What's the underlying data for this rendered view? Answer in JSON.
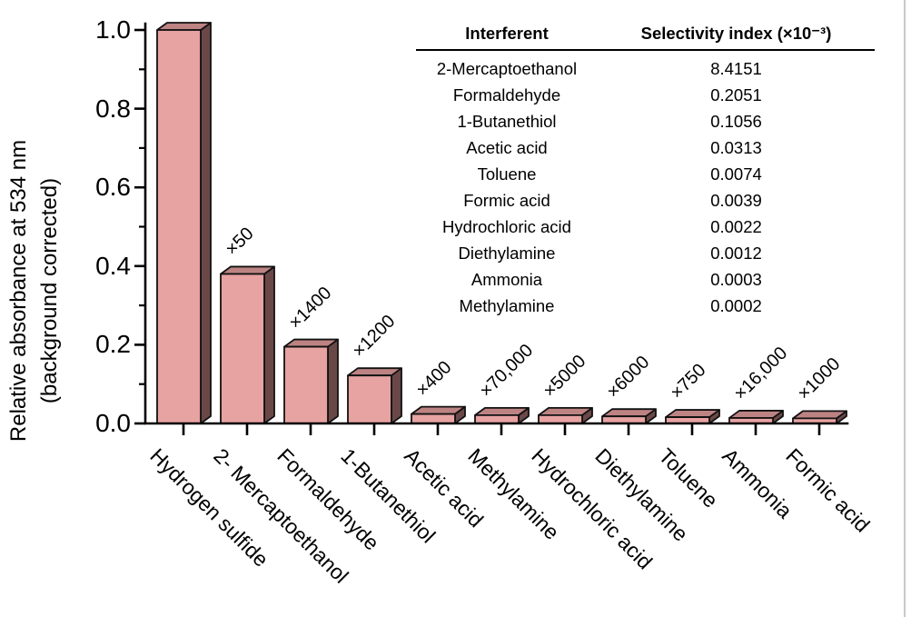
{
  "chart_data": {
    "type": "bar",
    "title": "",
    "ylabel_line1": "Relative absorbance at 534 nm",
    "ylabel_line2": "(background corrected)",
    "xlabel": "",
    "ylim": [
      0.0,
      1.0
    ],
    "ytick_labels": [
      "0.0",
      "0.2",
      "0.4",
      "0.6",
      "0.8",
      "1.0"
    ],
    "ytick_values": [
      0.0,
      0.2,
      0.4,
      0.6,
      0.8,
      1.0
    ],
    "yminor_values": [
      0.1,
      0.3,
      0.5,
      0.7,
      0.9
    ],
    "grid": "off",
    "categories": [
      "Hydrogen sulfide",
      "2- Mercaptoethanol",
      "Formaldehyde",
      "1-Butanethiol",
      "Acetic acid",
      "Methylamine",
      "Hydrochloric acid",
      "Diethylamine",
      "Toluene",
      "Ammonia",
      "Formic acid"
    ],
    "values": [
      1.0,
      0.38,
      0.195,
      0.122,
      0.024,
      0.021,
      0.021,
      0.018,
      0.016,
      0.014,
      0.013
    ],
    "annotations": [
      "",
      "×50",
      "×1400",
      "×1200",
      "×400",
      "×70,000",
      "×5000",
      "×6000",
      "×750",
      "×16,000",
      "×1000"
    ],
    "bar_style": "3d",
    "colors": {
      "bar_front": "#e7a2a2",
      "bar_top": "#bd8383",
      "bar_side": "#6b4848",
      "outline": "#111111",
      "axis": "#000000",
      "page_edge": "#c9c9c9"
    }
  },
  "table": {
    "headers": [
      "Interferent",
      "Selectivity index (×10⁻³)"
    ],
    "rows": [
      {
        "interferent": "2-Mercaptoethanol",
        "index": "8.4151"
      },
      {
        "interferent": "Formaldehyde",
        "index": "0.2051"
      },
      {
        "interferent": "1-Butanethiol",
        "index": "0.1056"
      },
      {
        "interferent": "Acetic acid",
        "index": "0.0313"
      },
      {
        "interferent": "Toluene",
        "index": "0.0074"
      },
      {
        "interferent": "Formic acid",
        "index": "0.0039"
      },
      {
        "interferent": "Hydrochloric acid",
        "index": "0.0022"
      },
      {
        "interferent": "Diethylamine",
        "index": "0.0012"
      },
      {
        "interferent": "Ammonia",
        "index": "0.0003"
      },
      {
        "interferent": "Methylamine",
        "index": "0.0002"
      }
    ]
  }
}
